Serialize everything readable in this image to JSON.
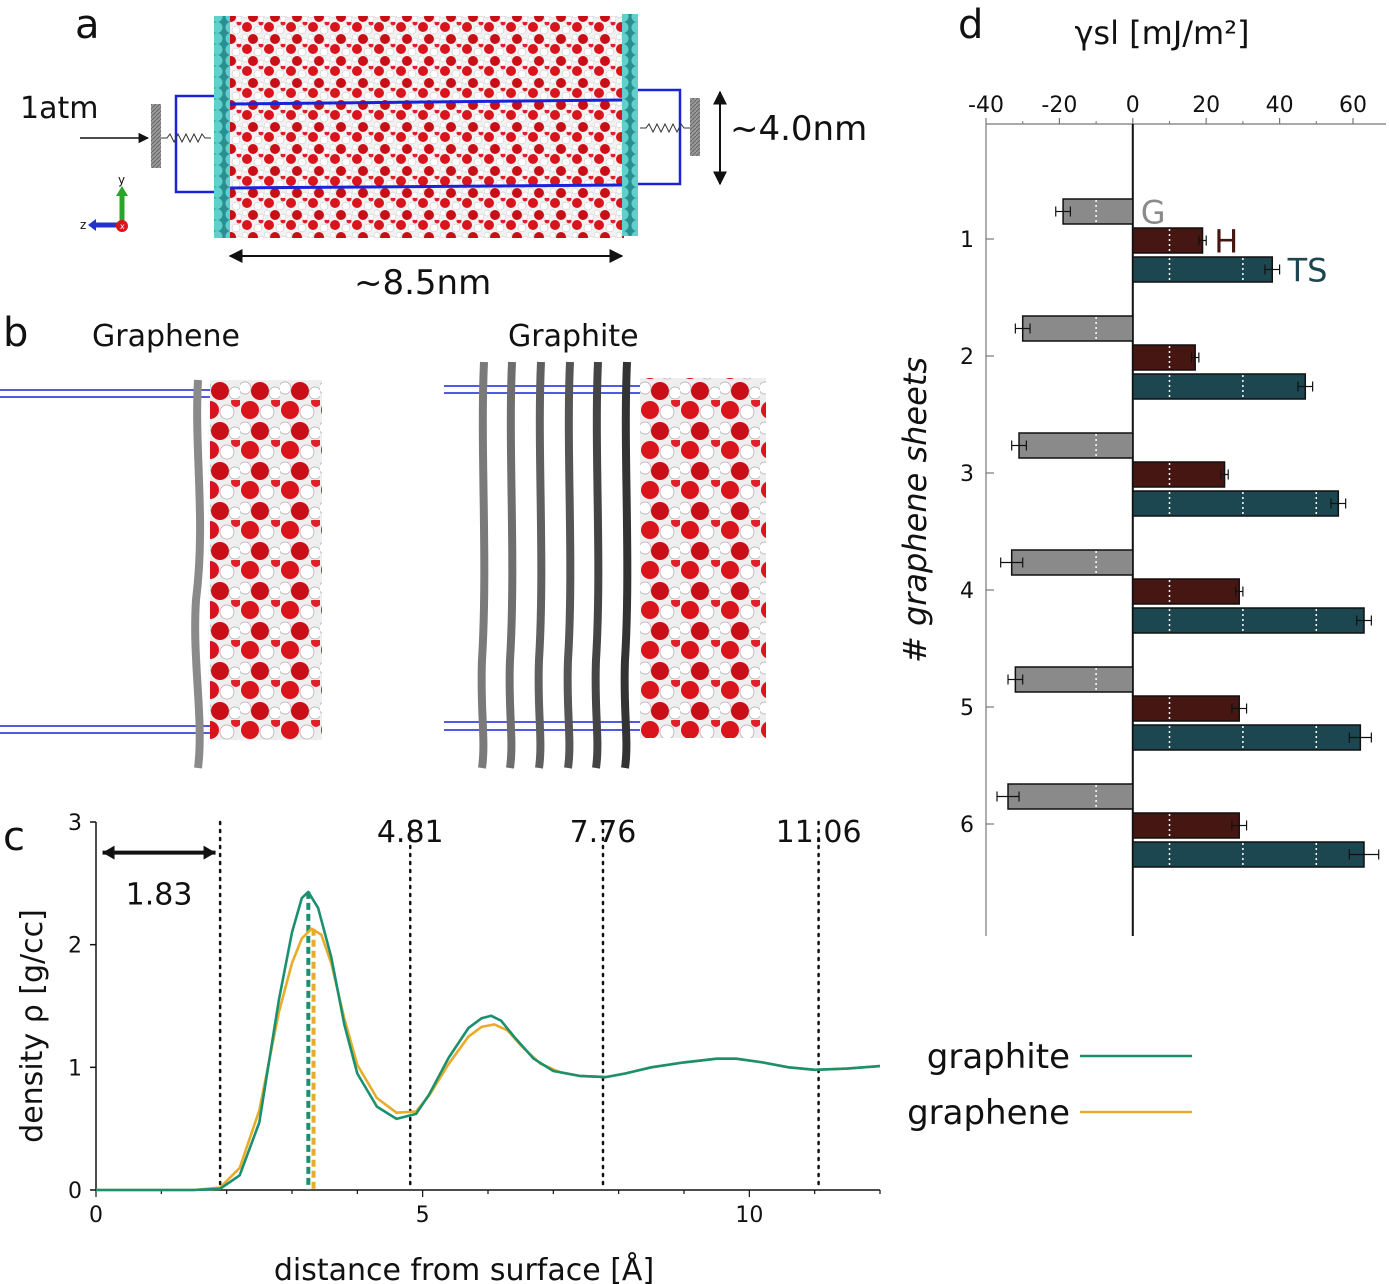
{
  "panels": {
    "a": {
      "letter": "a",
      "pressure_label": "1atm",
      "height_label": "~4.0nm",
      "width_label": "~8.5nm",
      "axis_y": "y",
      "axis_z": "z",
      "axis_x": "x"
    },
    "b": {
      "letter": "b",
      "left_title": "Graphene",
      "right_title": "Graphite"
    },
    "c": {
      "letter": "c"
    },
    "d": {
      "letter": "d"
    }
  },
  "chart_data": [
    {
      "id": "c",
      "type": "line",
      "xlabel": "distance from surface [Å]",
      "ylabel": "density ρ [g/cc]",
      "xlim": [
        0,
        12
      ],
      "ylim": [
        0,
        3
      ],
      "xticks": [
        0,
        5,
        10
      ],
      "yticks": [
        0,
        1,
        2,
        3
      ],
      "legend_position": "right",
      "vlines": [
        {
          "x": 1.9,
          "label": ""
        },
        {
          "x": 4.81,
          "label": "4.81"
        },
        {
          "x": 7.76,
          "label": "7.76"
        },
        {
          "x": 11.06,
          "label": "11.06"
        }
      ],
      "arrow": {
        "from": 0.1,
        "to": 1.83,
        "y": 2.75,
        "label": "1.83"
      },
      "peak_markers": [
        {
          "x": 3.25,
          "series": "graphite"
        },
        {
          "x": 3.33,
          "series": "graphene"
        }
      ],
      "series": [
        {
          "name": "graphite",
          "color": "#1a9070",
          "x": [
            0,
            1.5,
            1.9,
            2.2,
            2.5,
            2.8,
            3.0,
            3.15,
            3.25,
            3.4,
            3.6,
            3.8,
            4.0,
            4.3,
            4.6,
            4.9,
            5.1,
            5.4,
            5.7,
            5.9,
            6.05,
            6.2,
            6.4,
            6.7,
            7.0,
            7.4,
            7.8,
            8.1,
            8.5,
            9.0,
            9.5,
            9.8,
            10.2,
            10.6,
            11.0,
            11.5,
            12.0
          ],
          "values": [
            0,
            0,
            0.01,
            0.12,
            0.55,
            1.55,
            2.1,
            2.38,
            2.43,
            2.3,
            1.9,
            1.35,
            0.95,
            0.68,
            0.58,
            0.62,
            0.78,
            1.08,
            1.32,
            1.4,
            1.42,
            1.38,
            1.25,
            1.07,
            0.97,
            0.93,
            0.92,
            0.95,
            1.0,
            1.04,
            1.07,
            1.07,
            1.04,
            1.0,
            0.98,
            0.99,
            1.01
          ]
        },
        {
          "name": "graphene",
          "color": "#e8ac2a",
          "x": [
            0,
            1.5,
            1.9,
            2.2,
            2.5,
            2.8,
            3.0,
            3.15,
            3.3,
            3.45,
            3.6,
            3.8,
            4.0,
            4.3,
            4.6,
            4.9,
            5.1,
            5.4,
            5.7,
            5.9,
            6.1,
            6.3,
            6.5,
            6.8,
            7.1,
            7.4,
            7.8,
            8.1,
            8.5,
            9.0,
            9.5,
            9.8,
            10.2,
            10.6,
            11.0,
            11.5,
            12.0
          ],
          "values": [
            0,
            0,
            0.02,
            0.18,
            0.65,
            1.45,
            1.85,
            2.05,
            2.13,
            2.08,
            1.85,
            1.4,
            1.02,
            0.75,
            0.63,
            0.64,
            0.77,
            1.03,
            1.25,
            1.33,
            1.35,
            1.3,
            1.18,
            1.03,
            0.96,
            0.93,
            0.92,
            0.95,
            1.0,
            1.04,
            1.07,
            1.07,
            1.04,
            1.0,
            0.98,
            0.99,
            1.01
          ]
        }
      ]
    },
    {
      "id": "d",
      "type": "bar",
      "orientation": "horizontal",
      "title": "γsl [mJ/m²]",
      "ylabel": "# graphene sheets",
      "xlim": [
        -40,
        70
      ],
      "xticks": [
        -40,
        -20,
        0,
        20,
        40,
        60
      ],
      "categories": [
        "1",
        "2",
        "3",
        "4",
        "5",
        "6"
      ],
      "grid_x": [
        -10,
        10,
        30,
        50
      ],
      "series": [
        {
          "name": "G",
          "color": "#8a8a8a",
          "values": [
            -19,
            -30,
            -31,
            -33,
            -32,
            -34
          ],
          "errors": [
            2,
            2,
            2,
            3,
            2,
            3
          ]
        },
        {
          "name": "H",
          "color": "#451612",
          "values": [
            19,
            17,
            25,
            29,
            29,
            29
          ],
          "errors": [
            1,
            1,
            1,
            1,
            2,
            2
          ]
        },
        {
          "name": "TS",
          "color": "#1c4650",
          "values": [
            38,
            47,
            56,
            63,
            62,
            63
          ],
          "errors": [
            2,
            2,
            2,
            2,
            3,
            4
          ]
        }
      ]
    }
  ]
}
